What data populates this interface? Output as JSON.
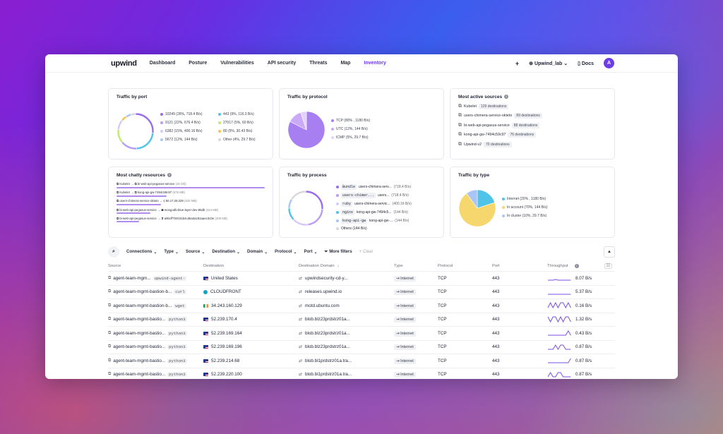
{
  "nav": {
    "logo": "upwind",
    "items": [
      "Dashboard",
      "Posture",
      "Vulnerabilities",
      "API security",
      "Threats",
      "Map",
      "Inventory"
    ],
    "plus": "+",
    "org": "Upwind_lab",
    "docs": "Docs",
    "avatar": "A"
  },
  "cards": {
    "port": {
      "title": "Traffic by port",
      "legend": [
        {
          "text": "10249 (26%, 718.4 B/s)",
          "color": "#9b6cf0"
        },
        {
          "text": "443 (9%, 116.3 B/s)",
          "color": "#4fc3e8"
        },
        {
          "text": "9121 (22%, 676.4 B/s)",
          "color": "#b89cf5"
        },
        {
          "text": "27017 (5%, 60 B/s)",
          "color": "#c5e870"
        },
        {
          "text": "6382 (15%, 400.16 B/s)",
          "color": "#d8c8fa"
        },
        {
          "text": "80 (5%, 30.43 B/s)",
          "color": "#f5c542"
        },
        {
          "text": "5672 (12%, 144 B/s)",
          "color": "#a9c4f5"
        },
        {
          "text": "Other (4%, 29.7 B/s)",
          "color": "#d8d8dc"
        }
      ],
      "values": [
        26,
        22,
        15,
        12,
        9,
        5,
        5,
        4
      ]
    },
    "protocol": {
      "title": "Traffic by protocol",
      "legend": [
        {
          "text": "TCP (80% , 1180 B/s)",
          "color": "#a77ff0"
        },
        {
          "text": "UTC (12%, 144 B/s)",
          "color": "#caa9f7"
        },
        {
          "text": "ICMP (5%, 29.7 B/s)",
          "color": "#e3d3fb"
        }
      ],
      "values": [
        80,
        12,
        5
      ]
    },
    "sources": {
      "title": "Most active sources",
      "items": [
        {
          "name": "Kubelet",
          "count": "129 destinations"
        },
        {
          "name": "users-chimera-service-okteto",
          "count": "89 destinations"
        },
        {
          "name": "bi-web-api-pegasus-service",
          "count": "88 destinations"
        },
        {
          "name": "kong-api-gw-7494c59c97",
          "count": "76 destinations"
        },
        {
          "name": "Upwind-v2",
          "count": "70 destinations"
        }
      ]
    },
    "chatty": {
      "title": "Most chatty resources",
      "items": [
        {
          "src": "Kubelet",
          "dst": "bi-web-api-pegasus-service",
          "size": "(16 GB)",
          "fill": 1.0
        },
        {
          "src": "Kubelet",
          "dst": "kong-api-gw-7494c59c97",
          "size": "(679 MB)",
          "fill": 0.34
        },
        {
          "src": "users-chimera-service-okteto",
          "dst": "50.17.28.229",
          "size": "(625 MB)",
          "fill": 0.3
        },
        {
          "src": "bi-web-api-pegasus-service",
          "dst": "mongodb-blue-layer-dev-85db",
          "size": "(444 MB)",
          "fill": 0.23
        },
        {
          "src": "bi-web-api-pegasus-service",
          "dst": "a9bcff704031b4cd6a3ac81aaec3c0e",
          "size": "(309 MB)",
          "fill": 0.15
        }
      ]
    },
    "process": {
      "title": "Traffic by process",
      "items": [
        {
          "proc": "Bundle",
          "svc": "users-chimera-serv...",
          "val": "(718.4 B/s)",
          "color": "#9b6cf0"
        },
        {
          "proc": "users-chimer...",
          "svc": "users...",
          "val": "(718.4 B/s)",
          "color": "#b89cf5"
        },
        {
          "proc": "ruby",
          "svc": "users-chimera-servic...",
          "val": "(400.16 B/s)",
          "color": "#d8c8fa"
        },
        {
          "proc": "nginx",
          "svc": "kong-api-gw-7494c5...",
          "val": "(144 B/s)",
          "color": "#4fc3e8"
        },
        {
          "proc": "kong-api-gw",
          "svc": "kong-api-gw-...",
          "val": "(144 B/s)",
          "color": "#a9c4f5"
        }
      ],
      "other": "Others (144 B/s)",
      "values": [
        26,
        22,
        15,
        12,
        9,
        16
      ]
    },
    "type": {
      "title": "Traffic by type",
      "legend": [
        {
          "text": "Internet (20% , 1180 B/s)",
          "color": "#4fc3e8"
        },
        {
          "text": "In account (70%, 144 B/s)",
          "color": "#f5d76e"
        },
        {
          "text": "In cluster (10%, 29.7 B/s)",
          "color": "#a9c4f5"
        }
      ],
      "values": [
        20,
        70,
        10
      ]
    }
  },
  "filters": {
    "items": [
      "Connections",
      "Type",
      "Source",
      "Destination",
      "Domain",
      "Protocol",
      "Port"
    ],
    "more": "More filters",
    "clear": "Clear"
  },
  "table": {
    "headers": [
      "Source",
      "Destination",
      "Destination Domain",
      "Type",
      "Protocol",
      "Port",
      "Throughput"
    ],
    "rows": [
      {
        "src": "agent-team-mgm...",
        "proc": "upwind-agent-",
        "flag": "us",
        "dst": "United States",
        "domain": "upwindsecurity-cd-y...",
        "type": "Internet",
        "proto": "TCP",
        "port": "443",
        "tp": "8.07 B/s",
        "spark": [
          2,
          2,
          2,
          3,
          2,
          2,
          2,
          2,
          2,
          2
        ]
      },
      {
        "src": "agent-team-mgmt-bastion-b...",
        "proc": "curl",
        "flag": "cloud",
        "dst": "CLOUDFRONT",
        "domain": "releases.upwind.io",
        "type": "Internet",
        "proto": "TCP",
        "port": "443",
        "tp": "5.37 B/s",
        "spark": [
          2,
          2,
          2,
          2,
          2,
          2,
          2,
          2,
          2,
          2
        ]
      },
      {
        "src": "agent-team-mgmt-bastion-b...",
        "proc": "wget",
        "flag": "ie",
        "dst": "34.243.160.129",
        "domain": "motd.ubuntu.com",
        "type": "Internet",
        "proto": "TCP",
        "port": "443",
        "tp": "0.16 B/s",
        "spark": [
          2,
          9,
          2,
          9,
          2,
          9,
          9,
          2,
          9,
          2
        ]
      },
      {
        "src": "agent-team-mgmt-bastio...",
        "proc": "python3",
        "flag": "us",
        "dst": "52.239.170.4",
        "domain": "blob.blz23prdstrz01a...",
        "type": "Internet",
        "proto": "TCP",
        "port": "443",
        "tp": "1.32 B/s",
        "spark": [
          9,
          2,
          9,
          9,
          2,
          9,
          2,
          9,
          9,
          2
        ]
      },
      {
        "src": "agent-team-mgmt-bastio...",
        "proc": "python3",
        "flag": "us",
        "dst": "52.239.169.164",
        "domain": "blob.blz23prdstrz01a...",
        "type": "Internet",
        "proto": "TCP",
        "port": "443",
        "tp": "0.43 B/s",
        "spark": [
          2,
          2,
          2,
          2,
          2,
          2,
          2,
          2,
          8,
          2
        ]
      },
      {
        "src": "agent-team-mgmt-bastio...",
        "proc": "python3",
        "flag": "us",
        "dst": "52.239.169.196",
        "domain": "blob.blz23prdstrz01a...",
        "type": "Internet",
        "proto": "TCP",
        "port": "443",
        "tp": "0.87 B/s",
        "spark": [
          2,
          2,
          2,
          8,
          2,
          8,
          8,
          2,
          2,
          2
        ]
      },
      {
        "src": "agent-team-mgmt-bastio...",
        "proc": "python3",
        "flag": "us",
        "dst": "52.239.214.68",
        "domain": "blob.bl1prdstrz01a.tra...",
        "type": "Internet",
        "proto": "TCP",
        "port": "443",
        "tp": "0.87 B/s",
        "spark": [
          2,
          2,
          2,
          2,
          2,
          2,
          2,
          2,
          2,
          8
        ]
      },
      {
        "src": "agent-team-mgmt-bastio...",
        "proc": "python3",
        "flag": "us",
        "dst": "52.239.220.100",
        "domain": "blob.bl1prdstrz01a.tra...",
        "type": "Internet",
        "proto": "TCP",
        "port": "443",
        "tp": "0.87 B/s",
        "spark": [
          2,
          8,
          2,
          2,
          8,
          8,
          2,
          2,
          2,
          2
        ]
      }
    ]
  }
}
